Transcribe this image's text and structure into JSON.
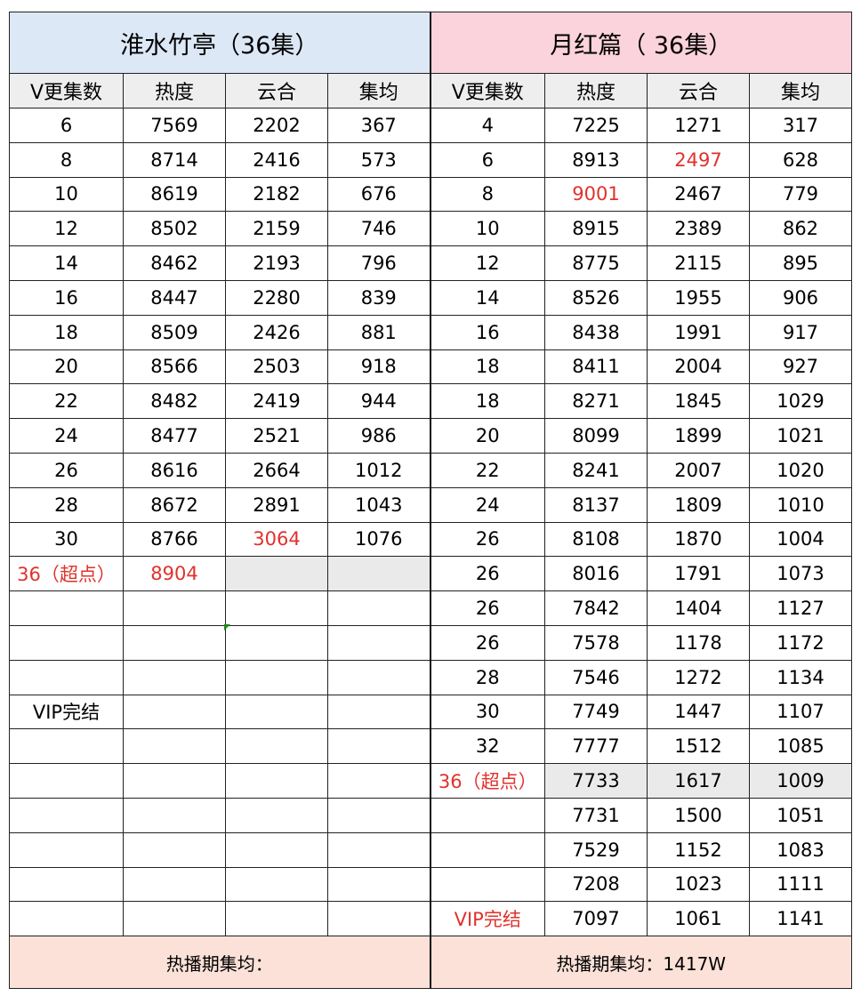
{
  "left": {
    "title": "淮水竹亭（36集）",
    "headers": [
      "V更集数",
      "热度",
      "云合",
      "集均"
    ],
    "rows": [
      [
        "6",
        "7569",
        "2202",
        "367"
      ],
      [
        "8",
        "8714",
        "2416",
        "573"
      ],
      [
        "10",
        "8619",
        "2182",
        "676"
      ],
      [
        "12",
        "8502",
        "2159",
        "746"
      ],
      [
        "14",
        "8462",
        "2193",
        "796"
      ],
      [
        "16",
        "8447",
        "2280",
        "839"
      ],
      [
        "18",
        "8509",
        "2426",
        "881"
      ],
      [
        "20",
        "8566",
        "2503",
        "918"
      ],
      [
        "22",
        "8482",
        "2419",
        "944"
      ],
      [
        "24",
        "8477",
        "2521",
        "986"
      ],
      [
        "26",
        "8616",
        "2664",
        "1012"
      ],
      [
        "28",
        "8672",
        "2891",
        "1043"
      ],
      [
        "30",
        "8766",
        "3064",
        "1076"
      ],
      [
        "36（超点）",
        "8904",
        "",
        ""
      ],
      [
        "",
        "",
        "",
        ""
      ],
      [
        "",
        "",
        "",
        ""
      ],
      [
        "",
        "",
        "",
        ""
      ],
      [
        "VIP完结",
        "",
        "",
        ""
      ],
      [
        "",
        "",
        "",
        ""
      ],
      [
        "",
        "",
        "",
        ""
      ],
      [
        "",
        "",
        "",
        ""
      ],
      [
        "",
        "",
        "",
        ""
      ],
      [
        "",
        "",
        "",
        ""
      ],
      [
        "",
        "",
        "",
        ""
      ]
    ],
    "footer": "热播期集均："
  },
  "right": {
    "title": "月红篇（ 36集）",
    "headers": [
      "V更集数",
      "热度",
      "云合",
      "集均"
    ],
    "rows": [
      [
        "4",
        "7225",
        "1271",
        "317"
      ],
      [
        "6",
        "8913",
        "2497",
        "628"
      ],
      [
        "8",
        "9001",
        "2467",
        "779"
      ],
      [
        "10",
        "8915",
        "2389",
        "862"
      ],
      [
        "12",
        "8775",
        "2115",
        "895"
      ],
      [
        "14",
        "8526",
        "1955",
        "906"
      ],
      [
        "16",
        "8438",
        "1991",
        "917"
      ],
      [
        "18",
        "8411",
        "2004",
        "927"
      ],
      [
        "18",
        "8271",
        "1845",
        "1029"
      ],
      [
        "20",
        "8099",
        "1899",
        "1021"
      ],
      [
        "22",
        "8241",
        "2007",
        "1020"
      ],
      [
        "24",
        "8137",
        "1809",
        "1010"
      ],
      [
        "26",
        "8108",
        "1870",
        "1004"
      ],
      [
        "26",
        "8016",
        "1791",
        "1073"
      ],
      [
        "26",
        "7842",
        "1404",
        "1127"
      ],
      [
        "26",
        "7578",
        "1178",
        "1172"
      ],
      [
        "28",
        "7546",
        "1272",
        "1134"
      ],
      [
        "30",
        "7749",
        "1447",
        "1107"
      ],
      [
        "32",
        "7777",
        "1512",
        "1085"
      ],
      [
        "36（超点）",
        "7733",
        "1617",
        "1009"
      ],
      [
        "",
        "7731",
        "1500",
        "1051"
      ],
      [
        "",
        "7529",
        "1152",
        "1083"
      ],
      [
        "",
        "7208",
        "1023",
        "1111"
      ],
      [
        "VIP完结",
        "7097",
        "1061",
        "1141"
      ]
    ],
    "footer": "热播期集均：1417W"
  },
  "colors": {
    "left_title_bg": "#dce8f6",
    "right_title_bg": "#fbd3dc",
    "footer_bg": "#fbe1d8",
    "highlight_text": "#e0322c",
    "highlight_row_bg": "#eaeaea"
  }
}
